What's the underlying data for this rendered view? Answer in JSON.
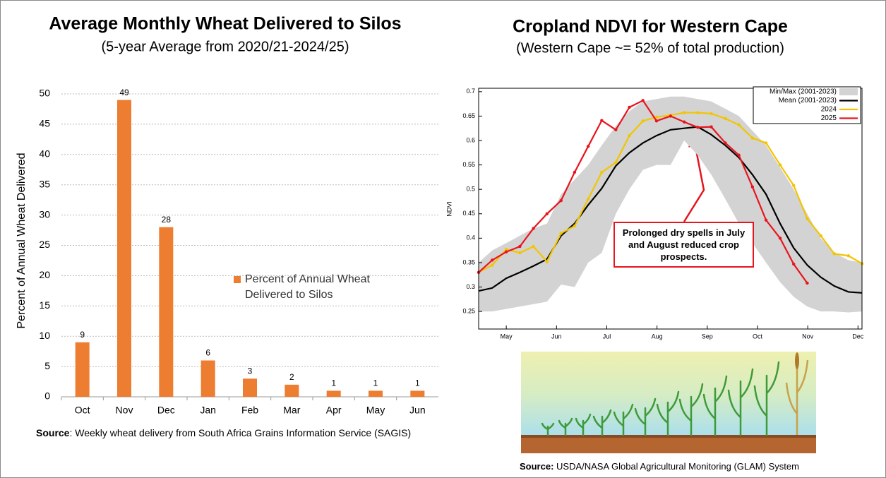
{
  "chart_data": [
    {
      "type": "bar",
      "title": "Average Monthly Wheat Delivered to Silos",
      "subtitle": "(5-year Average from 2020/21-2024/25)",
      "ylabel": "Percent of Annual Wheat Delivered",
      "categories": [
        "Oct",
        "Nov",
        "Dec",
        "Jan",
        "Feb",
        "Mar",
        "Apr",
        "May",
        "Jun"
      ],
      "series": [
        {
          "name": "Percent of Annual Wheat Delivered to Silos",
          "color": "#ed7d31",
          "values": [
            9,
            49,
            28,
            6,
            3,
            2,
            1,
            1,
            1
          ]
        }
      ],
      "ylim": [
        0,
        50
      ],
      "yticks": [
        0,
        5,
        10,
        15,
        20,
        25,
        30,
        35,
        40,
        45,
        50
      ],
      "grid": true,
      "source_label": "Source",
      "source_text": ": Weekly wheat delivery from South Africa Grains Information Service (SAGIS)"
    },
    {
      "type": "line",
      "title": "Cropland NDVI for Western Cape",
      "subtitle": "(Western Cape ~= 52% of total production)",
      "ylabel": "NDVI",
      "x": [
        4.45,
        4.72,
        5.0,
        5.27,
        5.54,
        5.81,
        6.09,
        6.36,
        6.63,
        6.9,
        7.18,
        7.45,
        7.72,
        7.99,
        8.27,
        8.54,
        8.81,
        9.08,
        9.36,
        9.63,
        9.9,
        10.17,
        10.45,
        10.72,
        10.99,
        11.26,
        11.53,
        11.81,
        12.08
      ],
      "series": [
        {
          "name": "Min/Max (2001-2023)",
          "color": "#d3d3d3",
          "upper": [
            0.35,
            0.375,
            0.39,
            0.405,
            0.42,
            0.43,
            0.49,
            0.52,
            0.55,
            0.59,
            0.63,
            0.66,
            0.68,
            0.685,
            0.69,
            0.69,
            0.685,
            0.68,
            0.665,
            0.65,
            0.62,
            0.59,
            0.545,
            0.5,
            0.45,
            0.4,
            0.37,
            0.355,
            0.35
          ],
          "lower": [
            0.25,
            0.25,
            0.255,
            0.26,
            0.265,
            0.27,
            0.305,
            0.3,
            0.35,
            0.37,
            0.45,
            0.5,
            0.54,
            0.55,
            0.55,
            0.6,
            0.57,
            0.53,
            0.48,
            0.43,
            0.39,
            0.35,
            0.31,
            0.28,
            0.26,
            0.25,
            0.25,
            0.248,
            0.25
          ]
        },
        {
          "name": "Mean (2001-2023)",
          "color": "#000000",
          "values": [
            0.292,
            0.298,
            0.318,
            0.33,
            0.343,
            0.357,
            0.405,
            0.43,
            0.468,
            0.502,
            0.548,
            0.575,
            0.595,
            0.61,
            0.622,
            0.625,
            0.628,
            0.612,
            0.59,
            0.565,
            0.53,
            0.49,
            0.43,
            0.38,
            0.345,
            0.32,
            0.302,
            0.29,
            0.288
          ]
        },
        {
          "name": "2024",
          "color": "#f2c500",
          "markers": true,
          "values": [
            0.33,
            0.345,
            0.377,
            0.37,
            0.383,
            0.352,
            0.41,
            0.425,
            0.48,
            0.535,
            0.555,
            0.61,
            0.64,
            0.648,
            0.652,
            0.657,
            0.657,
            0.655,
            0.645,
            0.632,
            0.605,
            0.595,
            0.55,
            0.508,
            0.44,
            0.405,
            0.368,
            0.364,
            0.348
          ]
        },
        {
          "name": "2025",
          "color": "#e8141e",
          "markers": true,
          "values": [
            0.33,
            0.355,
            0.372,
            0.383,
            0.42,
            0.45,
            0.477,
            0.535,
            0.588,
            0.641,
            0.622,
            0.668,
            0.682,
            0.64,
            0.65,
            0.638,
            0.627,
            0.628,
            0.595,
            0.57,
            0.505,
            0.437,
            0.4,
            0.347,
            0.308,
            null,
            null,
            null,
            null
          ]
        }
      ],
      "xlim": [
        4.45,
        12.08
      ],
      "xticks": [
        {
          "value": 5,
          "label": "May"
        },
        {
          "value": 6,
          "label": "Jun"
        },
        {
          "value": 7,
          "label": "Jul"
        },
        {
          "value": 8,
          "label": "Aug"
        },
        {
          "value": 9,
          "label": "Sep"
        },
        {
          "value": 10,
          "label": "Oct"
        },
        {
          "value": 11,
          "label": "Nov"
        },
        {
          "value": 12,
          "label": "Dec"
        }
      ],
      "ylim": [
        0.214,
        0.707
      ],
      "yticks": [
        0.25,
        0.3,
        0.35,
        0.4,
        0.45,
        0.5,
        0.55,
        0.6,
        0.65,
        0.7
      ],
      "legend": "upper right",
      "annotation": "Prolonged dry spells in July and August reduced crop prospects.",
      "source_label": "Source:",
      "source_text": " USDA/NASA Global Agricultural Monitoring (GLAM) System"
    }
  ]
}
